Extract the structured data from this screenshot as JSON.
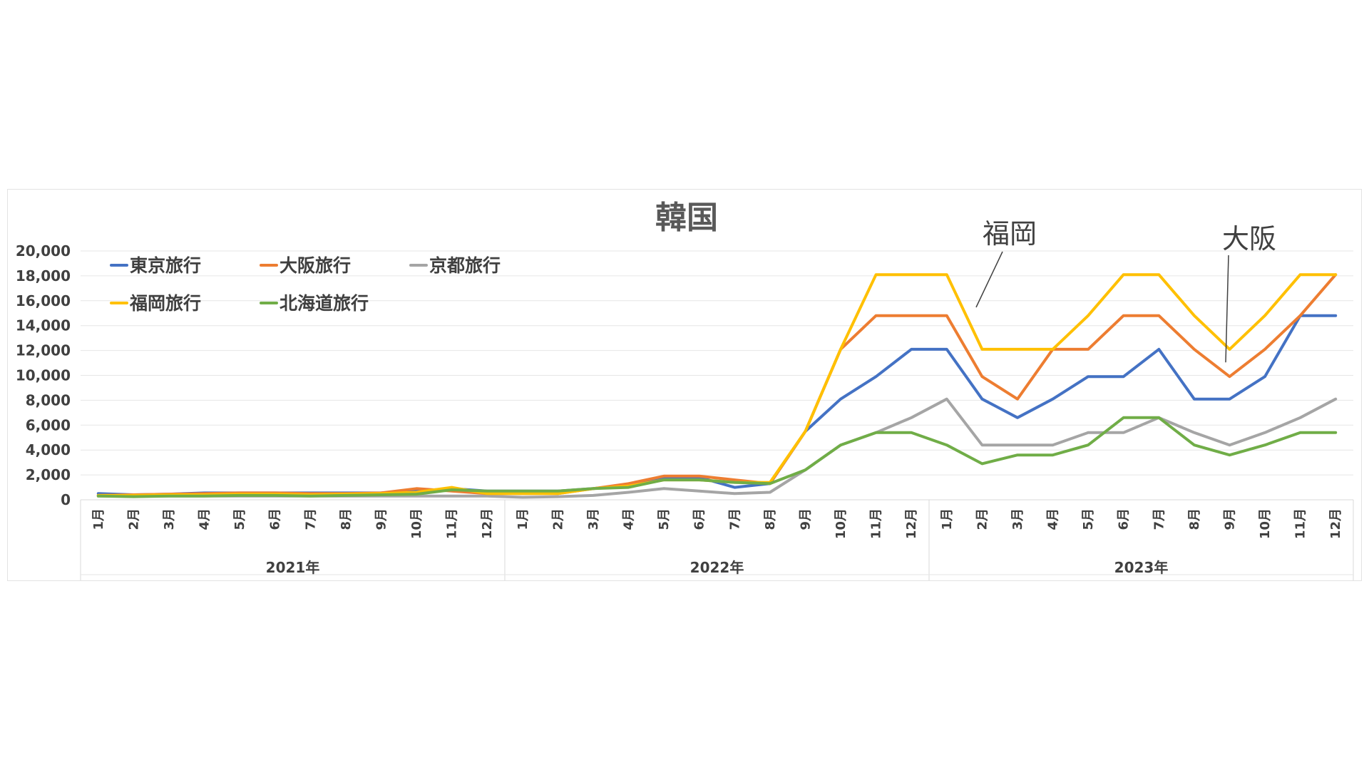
{
  "chart_data": {
    "type": "line",
    "title": "韓国",
    "ylim": [
      0,
      20000
    ],
    "yticks": [
      "0",
      "2,000",
      "4,000",
      "6,000",
      "8,000",
      "10,000",
      "12,000",
      "14,000",
      "16,000",
      "18,000",
      "20,000"
    ],
    "grid": true,
    "legend_position": "top-left",
    "years": [
      "2021年",
      "2022年",
      "2023年"
    ],
    "categories": [
      "1月",
      "2月",
      "3月",
      "4月",
      "5月",
      "6月",
      "7月",
      "8月",
      "9月",
      "10月",
      "11月",
      "12月",
      "1月",
      "2月",
      "3月",
      "4月",
      "5月",
      "6月",
      "7月",
      "8月",
      "9月",
      "10月",
      "11月",
      "12月",
      "1月",
      "2月",
      "3月",
      "4月",
      "5月",
      "6月",
      "7月",
      "8月",
      "9月",
      "10月",
      "11月",
      "12月"
    ],
    "series": [
      {
        "name": "東京旅行",
        "color": "#4472C4",
        "values": [
          500,
          400,
          450,
          550,
          550,
          550,
          550,
          550,
          550,
          700,
          900,
          700,
          700,
          700,
          900,
          1200,
          1800,
          1800,
          1000,
          1300,
          5500,
          8100,
          9900,
          12100,
          12100,
          8100,
          6600,
          8100,
          9900,
          9900,
          12100,
          8100,
          8100,
          9900,
          14800,
          14800
        ]
      },
      {
        "name": "大阪旅行",
        "color": "#ED7D31",
        "values": [
          350,
          400,
          450,
          500,
          550,
          550,
          500,
          500,
          550,
          900,
          700,
          500,
          500,
          500,
          900,
          1300,
          1900,
          1900,
          1600,
          1300,
          5500,
          12100,
          14800,
          14800,
          14800,
          9900,
          8100,
          12100,
          12100,
          14800,
          14800,
          12100,
          9900,
          12100,
          14800,
          18100
        ]
      },
      {
        "name": "京都旅行",
        "color": "#A5A5A5",
        "values": [
          300,
          300,
          300,
          300,
          300,
          300,
          300,
          300,
          300,
          300,
          300,
          300,
          200,
          250,
          350,
          600,
          900,
          700,
          500,
          600,
          2400,
          4400,
          5400,
          6600,
          8100,
          4400,
          4400,
          4400,
          5400,
          5400,
          6600,
          5400,
          4400,
          5400,
          6600,
          8100
        ]
      },
      {
        "name": "福岡旅行",
        "color": "#FFC000",
        "values": [
          350,
          350,
          400,
          400,
          450,
          450,
          400,
          450,
          500,
          600,
          1000,
          500,
          500,
          500,
          900,
          1100,
          1600,
          1600,
          1400,
          1400,
          5500,
          12100,
          18100,
          18100,
          18100,
          12100,
          12100,
          12100,
          14800,
          18100,
          18100,
          14800,
          12100,
          14800,
          18100,
          18100
        ]
      },
      {
        "name": "北海道旅行",
        "color": "#70AD47",
        "values": [
          300,
          250,
          300,
          300,
          350,
          350,
          300,
          350,
          400,
          450,
          800,
          700,
          700,
          700,
          900,
          1000,
          1600,
          1600,
          1400,
          1300,
          2400,
          4400,
          5400,
          5400,
          4400,
          2900,
          3600,
          3600,
          4400,
          6600,
          6600,
          4400,
          3600,
          4400,
          5400,
          5400
        ]
      }
    ],
    "annotations": [
      {
        "text": "福岡",
        "series": "福岡旅行"
      },
      {
        "text": "大阪",
        "series": "大阪旅行"
      }
    ]
  }
}
